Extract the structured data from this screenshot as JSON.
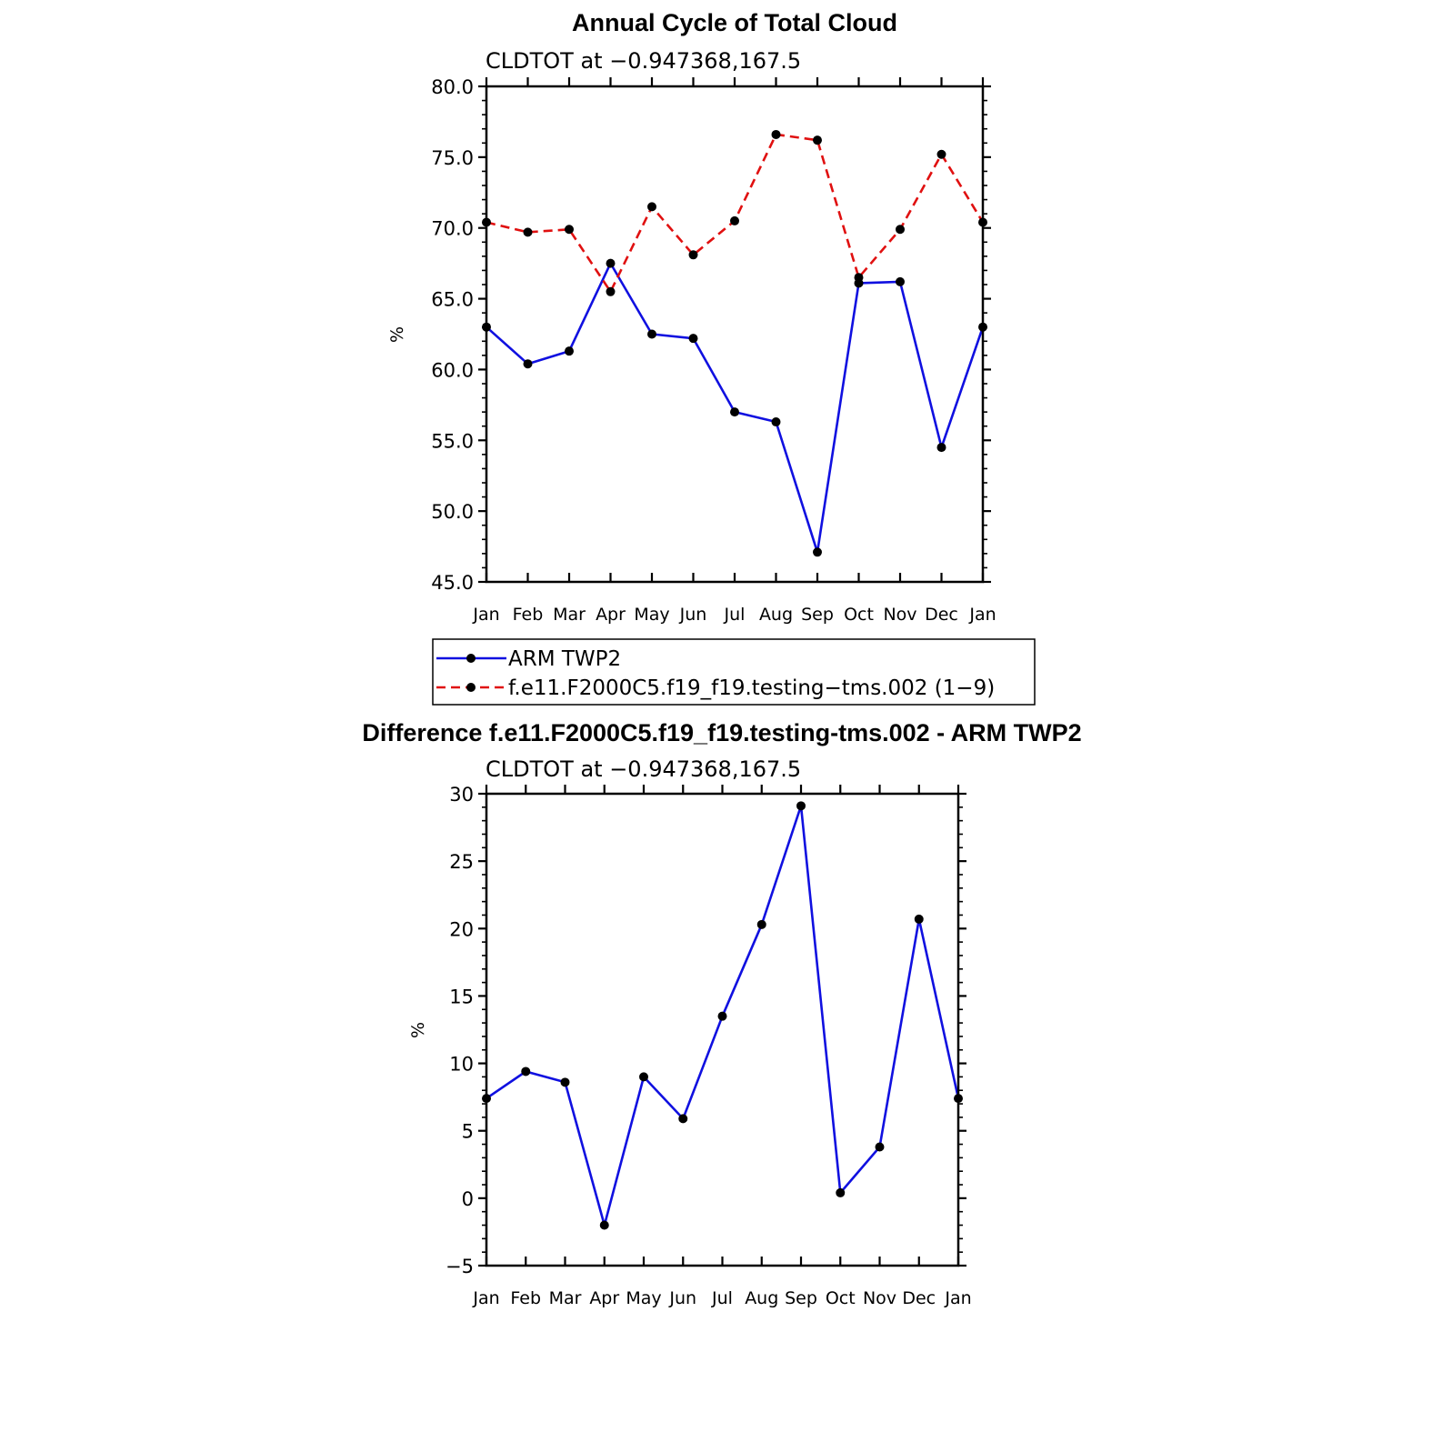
{
  "chart_data": [
    {
      "type": "line",
      "title": "Annual Cycle of Total Cloud",
      "subtitle": "CLDTOT at −0.947368,167.5",
      "xlabel": "",
      "ylabel": "%",
      "categories": [
        "Jan",
        "Feb",
        "Mar",
        "Apr",
        "May",
        "Jun",
        "Jul",
        "Aug",
        "Sep",
        "Oct",
        "Nov",
        "Dec",
        "Jan"
      ],
      "ylim": [
        45,
        80
      ],
      "yticks": [
        45,
        50,
        55,
        60,
        65,
        70,
        75,
        80
      ],
      "ytick_labels": [
        "45.0",
        "50.0",
        "55.0",
        "60.0",
        "65.0",
        "70.0",
        "75.0",
        "80.0"
      ],
      "series": [
        {
          "name": "ARM TWP2",
          "color": "#1010e0",
          "dash": "solid",
          "values": [
            63.0,
            60.4,
            61.3,
            67.5,
            62.5,
            62.2,
            57.0,
            56.3,
            47.1,
            66.1,
            66.2,
            54.5,
            63.0
          ]
        },
        {
          "name": "f.e11.F2000C5.f19_f19.testing−tms.002 (1−9)",
          "color": "#e01010",
          "dash": "dashed",
          "values": [
            70.4,
            69.7,
            69.9,
            65.5,
            71.5,
            68.1,
            70.5,
            76.6,
            76.2,
            66.5,
            69.9,
            75.2,
            70.4
          ]
        }
      ],
      "legend": {
        "placement": "below",
        "entries": [
          "ARM TWP2",
          "f.e11.F2000C5.f19_f19.testing−tms.002 (1−9)"
        ]
      }
    },
    {
      "type": "line",
      "title": "Difference f.e11.F2000C5.f19_f19.testing-tms.002 - ARM TWP2",
      "subtitle": "CLDTOT at −0.947368,167.5",
      "xlabel": "",
      "ylabel": "%",
      "categories": [
        "Jan",
        "Feb",
        "Mar",
        "Apr",
        "May",
        "Jun",
        "Jul",
        "Aug",
        "Sep",
        "Oct",
        "Nov",
        "Dec",
        "Jan"
      ],
      "ylim": [
        -5,
        30
      ],
      "yticks": [
        -5,
        0,
        5,
        10,
        15,
        20,
        25,
        30
      ],
      "ytick_labels": [
        "−5",
        "0",
        "5",
        "10",
        "15",
        "20",
        "25",
        "30"
      ],
      "series": [
        {
          "name": "Difference",
          "color": "#1010e0",
          "dash": "solid",
          "values": [
            7.4,
            9.4,
            8.6,
            -2.0,
            9.0,
            5.9,
            13.5,
            20.3,
            29.1,
            0.4,
            3.8,
            20.7,
            7.4
          ]
        }
      ]
    }
  ]
}
